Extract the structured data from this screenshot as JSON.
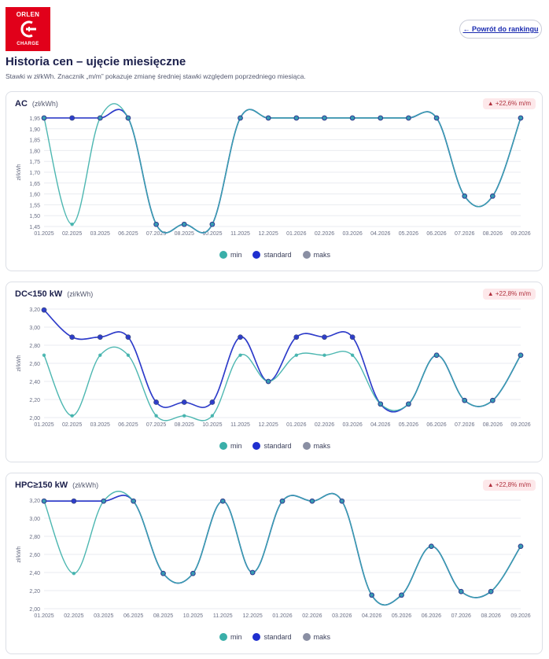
{
  "header": {
    "logo_brand": "ORLEN",
    "logo_sub": "CHARGE",
    "back_label": "← Powrót do rankingu",
    "title": "Historia cen – ujęcie miesięczne",
    "subtitle": "Stawki w zł/kWh. Znacznik „m/m” pokazuje zmianę średniej stawki względem poprzedniego miesiąca."
  },
  "colors": {
    "min": "#3aafa9",
    "standard": "#1f2fcf",
    "maks": "#8a8fa3",
    "accent": "#e1001a"
  },
  "legend": {
    "min": "min",
    "standard": "standard",
    "maks": "maks"
  },
  "chart_data": [
    {
      "type": "line",
      "title": "AC",
      "unit": "(zł/kWh)",
      "ylabel": "zł/kWh",
      "badge": "▲ +22,6% m/m",
      "ylim": [
        1.45,
        1.95
      ],
      "yticks": [
        "1,45",
        "1,50",
        "1,55",
        "1,60",
        "1,65",
        "1,70",
        "1,75",
        "1,80",
        "1,85",
        "1,90",
        "1,95"
      ],
      "categories": [
        "01.2025",
        "02.2025",
        "03.2025",
        "06.2025",
        "07.2025",
        "08.2025",
        "10.2025",
        "11.2025",
        "12.2025",
        "01.2026",
        "02.2026",
        "03.2026",
        "04.2026",
        "05.2026",
        "06.2026",
        "07.2026",
        "08.2026",
        "09.2026"
      ],
      "series": [
        {
          "name": "min",
          "values": [
            1.95,
            1.46,
            1.95,
            1.95,
            1.46,
            1.46,
            1.46,
            1.95,
            1.95,
            1.95,
            1.95,
            1.95,
            1.95,
            1.95,
            1.95,
            1.59,
            1.59,
            1.95
          ]
        },
        {
          "name": "standard",
          "values": [
            1.95,
            1.95,
            1.95,
            1.95,
            1.46,
            1.46,
            1.46,
            1.95,
            1.95,
            1.95,
            1.95,
            1.95,
            1.95,
            1.95,
            1.95,
            1.59,
            1.59,
            1.95
          ]
        },
        {
          "name": "maks",
          "values": [
            1.95,
            1.95,
            1.95,
            1.95,
            1.46,
            1.46,
            1.46,
            1.95,
            1.95,
            1.95,
            1.95,
            1.95,
            1.95,
            1.95,
            1.95,
            1.59,
            1.59,
            1.95
          ]
        }
      ]
    },
    {
      "type": "line",
      "title": "DC<150 kW",
      "unit": "(zł/kWh)",
      "ylabel": "zł/kWh",
      "badge": "▲ +22,8% m/m",
      "ylim": [
        2.0,
        3.2
      ],
      "yticks": [
        "2,00",
        "2,20",
        "2,40",
        "2,60",
        "2,80",
        "3,00",
        "3,20"
      ],
      "categories": [
        "01.2025",
        "02.2025",
        "03.2025",
        "06.2025",
        "07.2025",
        "08.2025",
        "10.2025",
        "11.2025",
        "12.2025",
        "01.2026",
        "02.2026",
        "03.2026",
        "04.2026",
        "05.2026",
        "06.2026",
        "07.2026",
        "08.2026",
        "09.2026"
      ],
      "series": [
        {
          "name": "min",
          "values": [
            2.69,
            2.02,
            2.69,
            2.69,
            2.02,
            2.02,
            2.02,
            2.69,
            2.4,
            2.69,
            2.69,
            2.69,
            2.15,
            2.15,
            2.69,
            2.19,
            2.19,
            2.69
          ]
        },
        {
          "name": "standard",
          "values": [
            3.19,
            2.89,
            2.89,
            2.89,
            2.17,
            2.17,
            2.17,
            2.89,
            2.4,
            2.89,
            2.89,
            2.89,
            2.15,
            2.15,
            2.69,
            2.19,
            2.19,
            2.69
          ]
        },
        {
          "name": "maks",
          "values": [
            3.19,
            2.89,
            2.89,
            2.89,
            2.17,
            2.17,
            2.17,
            2.89,
            2.4,
            2.89,
            2.89,
            2.89,
            2.15,
            2.15,
            2.69,
            2.19,
            2.19,
            2.69
          ]
        }
      ]
    },
    {
      "type": "line",
      "title": "HPC≥150 kW",
      "unit": "(zł/kWh)",
      "ylabel": "zł/kWh",
      "badge": "▲ +22,8% m/m",
      "ylim": [
        2.0,
        3.2
      ],
      "yticks": [
        "2,00",
        "2,20",
        "2,40",
        "2,60",
        "2,80",
        "3,00",
        "3,20"
      ],
      "categories": [
        "01.2025",
        "02.2025",
        "03.2025",
        "06.2025",
        "08.2025",
        "10.2025",
        "11.2025",
        "12.2025",
        "01.2026",
        "02.2026",
        "03.2026",
        "04.2026",
        "05.2026",
        "06.2026",
        "07.2026",
        "08.2026",
        "09.2026"
      ],
      "series": [
        {
          "name": "min",
          "values": [
            3.19,
            2.39,
            3.19,
            3.19,
            2.39,
            2.39,
            3.19,
            2.4,
            3.19,
            3.19,
            3.19,
            2.15,
            2.15,
            2.69,
            2.19,
            2.19,
            2.69
          ]
        },
        {
          "name": "standard",
          "values": [
            3.19,
            3.19,
            3.19,
            3.19,
            2.39,
            2.39,
            3.19,
            2.4,
            3.19,
            3.19,
            3.19,
            2.15,
            2.15,
            2.69,
            2.19,
            2.19,
            2.69
          ]
        },
        {
          "name": "maks",
          "values": [
            3.19,
            3.19,
            3.19,
            3.19,
            2.39,
            2.39,
            3.19,
            2.4,
            3.19,
            3.19,
            3.19,
            2.15,
            2.15,
            2.69,
            2.19,
            2.19,
            2.69
          ]
        }
      ]
    }
  ]
}
